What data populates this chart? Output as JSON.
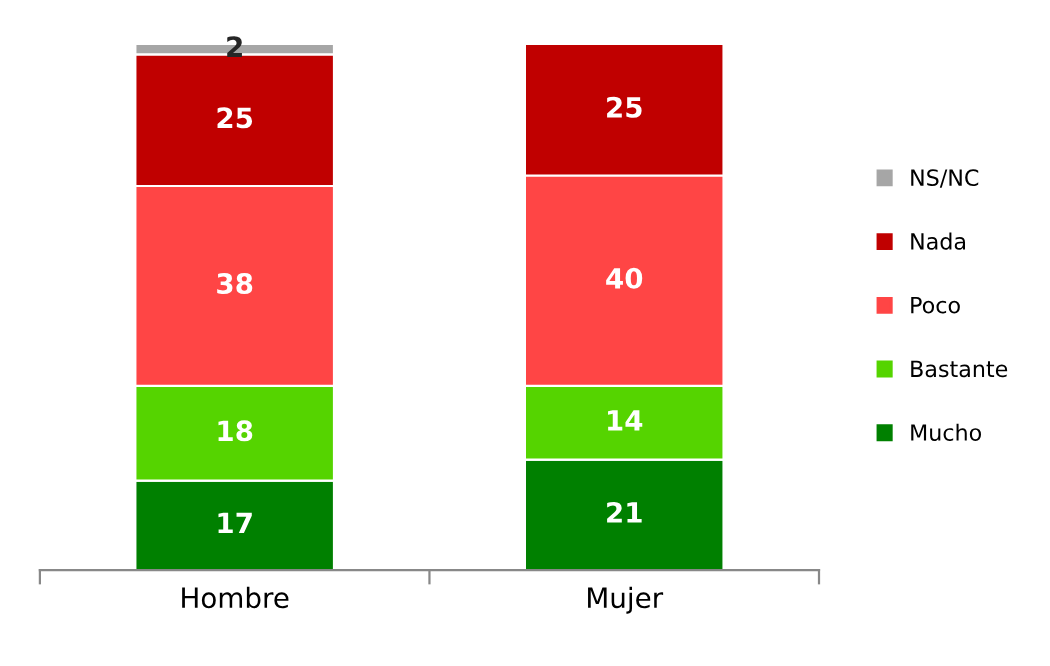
{
  "chart_data": {
    "type": "bar",
    "stacked": true,
    "categories": [
      "Hombre",
      "Mujer"
    ],
    "series": [
      {
        "name": "Mucho",
        "color": "#008000",
        "values": [
          17,
          21
        ]
      },
      {
        "name": "Bastante",
        "color": "#55d400",
        "values": [
          18,
          14
        ]
      },
      {
        "name": "Poco",
        "color": "#ff4545",
        "values": [
          38,
          40
        ]
      },
      {
        "name": "Nada",
        "color": "#c00000",
        "values": [
          25,
          25
        ]
      },
      {
        "name": "NS/NC",
        "color": "#a6a6a6",
        "values": [
          2,
          null
        ]
      }
    ],
    "data_labels": true,
    "legend": "right"
  }
}
